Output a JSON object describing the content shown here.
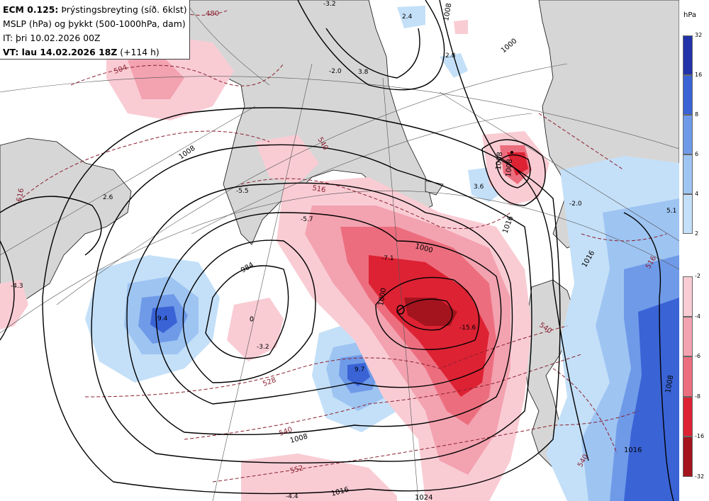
{
  "header": {
    "model": "ECM 0.125:",
    "field_title": "Þrýstingsbreyting (síð. 6klst)",
    "line2": "MSLP (hPa) og þykkt (500-1000hPa, dam)",
    "init_time": "IT: þri 10.02.2026 00Z",
    "valid_prefix": "VT: lau 14.02.2026 18Z",
    "valid_suffix": "(+114 h)"
  },
  "legend": {
    "unit": "hPa",
    "positive_ticks": [
      "32",
      "16",
      "8",
      "6",
      "4",
      "2"
    ],
    "negative_ticks": [
      "-2",
      "-4",
      "-6",
      "-8",
      "-16",
      "-32"
    ],
    "positive_colors": [
      "#2233aa",
      "#3a63d6",
      "#6f9ae8",
      "#9ec4f2",
      "#c4e0f8"
    ],
    "negative_colors": [
      "#f9ccd4",
      "#f3a2b0",
      "#ec6e7e",
      "#dd2233",
      "#a3141e"
    ]
  },
  "map": {
    "isobar_labels": [
      "1008",
      "984",
      "1000",
      "1016",
      "1008",
      "1016",
      "1024",
      "1008",
      "1000",
      "1016",
      "1008",
      "1008",
      "1000",
      "1016",
      "1008"
    ],
    "thickness_labels": [
      "480",
      "504",
      "516",
      "516",
      "540",
      "528",
      "540",
      "552",
      "516",
      "540",
      "540"
    ],
    "change_values": [
      "-3.2",
      "2.4",
      "-2.0",
      "3.8",
      "2.8",
      "3.6",
      "2.6",
      "-5.5",
      "-5.7",
      "-7.1",
      "-15.6",
      "-3.2",
      "9.4",
      "9.7",
      "-4.3",
      "-4.4",
      "5.1",
      "-2.0"
    ]
  }
}
